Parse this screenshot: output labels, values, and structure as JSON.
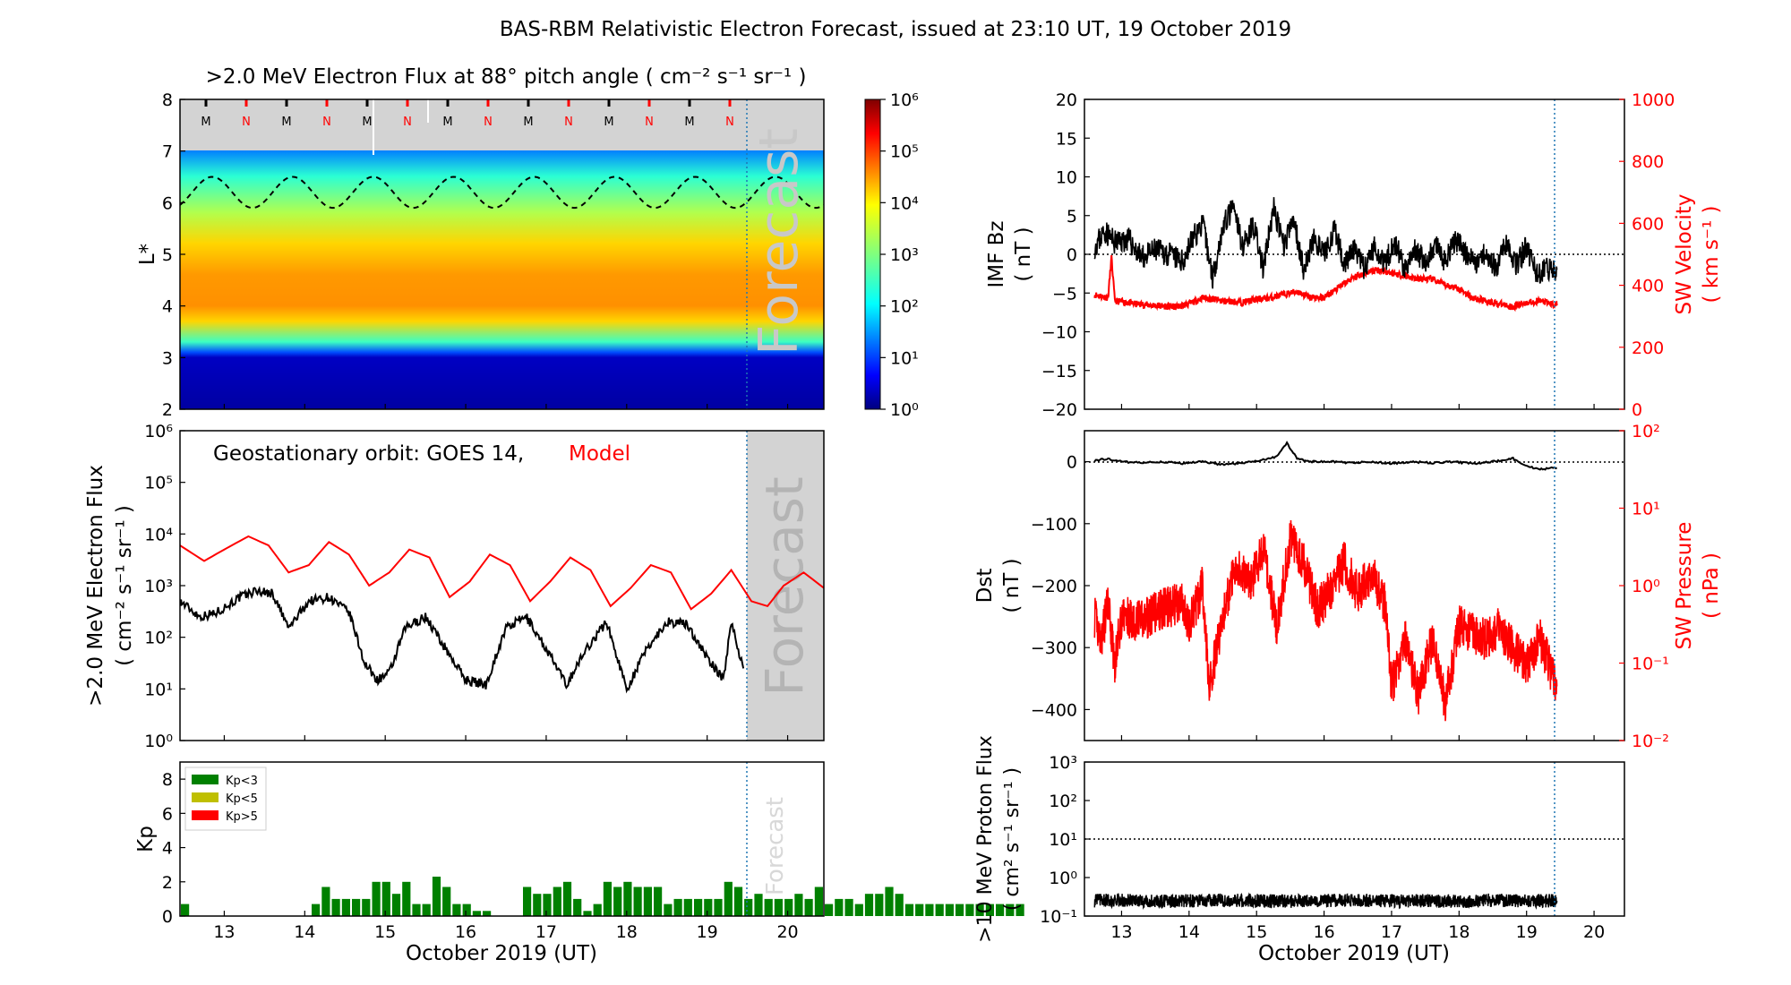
{
  "title": "BAS-RBM Relativistic Electron Forecast, issued at 23:10 UT, 19 October 2019",
  "colors": {
    "black": "#000000",
    "red": "#ff0000",
    "kp_low": "#008000",
    "kp_mid": "#bfbf00",
    "kp_high": "#ff0000",
    "forecast_gray": "#d3d3d3",
    "forecast_line": "#1f77b4"
  },
  "forecast_label": "Forecast",
  "xaxis": {
    "label": "October 2019 (UT)",
    "range": [
      12.45,
      20.45
    ],
    "ticks": [
      "13",
      "14",
      "15",
      "16",
      "17",
      "18",
      "19",
      "20"
    ],
    "forecast_start": 19.47
  },
  "chart_data": [
    {
      "id": "lstar_heatmap",
      "type": "heatmap",
      "title": ">2.0 MeV Electron Flux at 88° pitch angle ( cm⁻² s⁻¹ sr⁻¹ )",
      "ylabel": "L*",
      "ylim": [
        2,
        8
      ],
      "yticks": [
        "2",
        "3",
        "4",
        "5",
        "6",
        "7",
        "8"
      ],
      "colorbar_ticks": [
        "10⁰",
        "10¹",
        "10²",
        "10³",
        "10⁴",
        "10⁵",
        "10⁶"
      ],
      "colorbar_range_log10": [
        0,
        6
      ],
      "profile_log10_flux": [
        {
          "L": 2.0,
          "v": 0.2
        },
        {
          "L": 3.0,
          "v": 0.4
        },
        {
          "L": 3.1,
          "v": 1.2
        },
        {
          "L": 3.3,
          "v": 2.6
        },
        {
          "L": 3.7,
          "v": 4.0
        },
        {
          "L": 4.0,
          "v": 4.4
        },
        {
          "L": 4.6,
          "v": 4.35
        },
        {
          "L": 5.2,
          "v": 4.0
        },
        {
          "L": 5.8,
          "v": 3.3
        },
        {
          "L": 6.5,
          "v": 2.5
        },
        {
          "L": 7.0,
          "v": 1.5
        }
      ],
      "magnetopause_line": {
        "L_min": 5.9,
        "L_max": 6.5,
        "period_days": 1.0
      },
      "orbit_markers": [
        "M",
        "N",
        "M",
        "N",
        "M",
        "N",
        "M",
        "N",
        "M",
        "N",
        "M",
        "N",
        "M",
        "N"
      ]
    },
    {
      "id": "geo_flux",
      "type": "line",
      "annotation": "Geostationary orbit:   GOES 14,",
      "annotation_model": "Model",
      "ylabel": ">2.0 MeV Electron Flux",
      "ylabel_units": "( cm⁻² s⁻¹ sr⁻¹ )",
      "yscale": "log",
      "ylim": [
        1,
        1000000
      ],
      "yticks": [
        "10⁰",
        "10¹",
        "10²",
        "10³",
        "10⁴",
        "10⁵",
        "10⁶"
      ],
      "series": [
        {
          "name": "GOES 14",
          "color": "#000000",
          "x": [
            12.45,
            12.7,
            12.9,
            13.2,
            13.4,
            13.6,
            13.8,
            14.05,
            14.3,
            14.55,
            14.75,
            14.9,
            15.05,
            15.25,
            15.5,
            15.75,
            16.0,
            16.25,
            16.5,
            16.75,
            17.0,
            17.25,
            17.5,
            17.75,
            18.0,
            18.25,
            18.5,
            18.75,
            19.0,
            19.2,
            19.3,
            19.45
          ],
          "y": [
            500,
            250,
            300,
            600,
            800,
            700,
            150,
            500,
            600,
            300,
            30,
            15,
            20,
            150,
            250,
            60,
            15,
            12,
            150,
            250,
            60,
            12,
            60,
            200,
            10,
            60,
            200,
            180,
            40,
            15,
            200,
            25
          ]
        },
        {
          "name": "Model",
          "color": "#ff0000",
          "x": [
            12.45,
            12.75,
            13.0,
            13.3,
            13.55,
            13.8,
            14.05,
            14.3,
            14.55,
            14.8,
            15.05,
            15.3,
            15.55,
            15.8,
            16.05,
            16.3,
            16.55,
            16.8,
            17.05,
            17.3,
            17.55,
            17.8,
            18.05,
            18.3,
            18.55,
            18.8,
            19.05,
            19.3,
            19.55,
            19.75,
            19.95,
            20.2,
            20.45
          ],
          "y": [
            6000,
            3000,
            5000,
            9000,
            6000,
            1800,
            2500,
            7000,
            4000,
            1000,
            1800,
            5000,
            3500,
            600,
            1200,
            4000,
            2500,
            500,
            1200,
            3500,
            2000,
            400,
            900,
            2500,
            1800,
            350,
            700,
            2000,
            500,
            400,
            1000,
            1800,
            900
          ]
        }
      ]
    },
    {
      "id": "kp",
      "type": "bar",
      "ylabel": "Kp",
      "ylim": [
        0,
        9
      ],
      "yticks": [
        "0",
        "2",
        "4",
        "6",
        "8"
      ],
      "legend": [
        "Kp<3",
        "Kp<5",
        "Kp>5"
      ],
      "legend_position": "top-left",
      "bar_width_days": 0.125,
      "start": 12.45,
      "values": [
        0.7,
        0,
        0,
        0,
        0,
        0,
        0,
        0,
        0,
        0,
        0,
        0,
        0,
        0.7,
        1.7,
        1.0,
        1.0,
        1.0,
        1.0,
        2.0,
        2.0,
        1.3,
        2.0,
        0.7,
        0.7,
        2.3,
        1.7,
        0.7,
        0.7,
        0.3,
        0.3,
        0,
        0,
        0,
        1.7,
        1.3,
        1.3,
        1.7,
        2.0,
        1.0,
        0.3,
        0.7,
        2.0,
        1.7,
        2.0,
        1.7,
        1.7,
        1.7,
        0.7,
        1.0,
        1.0,
        1.0,
        1.0,
        1.0,
        2.0,
        1.7,
        1.0,
        1.3,
        1.0,
        1.0,
        1.0,
        1.3,
        1.0,
        1.7,
        0.7,
        1.0,
        1.0,
        0.7,
        1.3,
        1.3,
        1.7,
        1.3,
        0.7,
        0.7,
        0.7,
        0.7,
        0.7,
        0.7,
        0.7,
        0.7,
        0.7,
        0.7,
        0.7,
        0.7
      ]
    },
    {
      "id": "imf_sw",
      "type": "line",
      "ylabel": "IMF Bz",
      "ylabel_units": "( nT )",
      "ylim": [
        -20,
        20
      ],
      "yticks": [
        "−20",
        "−15",
        "−10",
        "−5",
        "0",
        "5",
        "10",
        "15",
        "20"
      ],
      "ylabel_right": "SW Velocity",
      "ylabel_right_units": "( km s⁻¹ )",
      "ylim_right": [
        0,
        1000
      ],
      "yticks_right": [
        "0",
        "200",
        "400",
        "600",
        "800",
        "1000"
      ],
      "series": [
        {
          "name": "IMF Bz",
          "color": "#000000",
          "x": [
            12.6,
            12.75,
            12.9,
            13.1,
            13.3,
            13.5,
            13.7,
            13.9,
            14.05,
            14.2,
            14.35,
            14.5,
            14.65,
            14.8,
            14.95,
            15.1,
            15.25,
            15.4,
            15.55,
            15.7,
            15.85,
            16.0,
            16.15,
            16.3,
            16.45,
            16.6,
            16.75,
            16.9,
            17.05,
            17.2,
            17.35,
            17.5,
            17.65,
            17.8,
            17.95,
            18.1,
            18.25,
            18.4,
            18.55,
            18.7,
            18.85,
            19.0,
            19.15,
            19.3,
            19.45
          ],
          "y": [
            1.0,
            3.0,
            1.5,
            2.0,
            -0.5,
            0.5,
            0.0,
            -1.0,
            2.0,
            4.0,
            -3.0,
            3.5,
            6.0,
            1.0,
            4.0,
            -2.0,
            6.0,
            1.0,
            4.5,
            -2.0,
            2.0,
            0.0,
            3.0,
            -1.0,
            0.5,
            -2.0,
            1.0,
            -1.0,
            1.5,
            -2.0,
            0.5,
            -1.0,
            1.0,
            -1.0,
            2.0,
            0.0,
            -1.0,
            0.5,
            -2.0,
            2.0,
            -1.5,
            1.0,
            -2.5,
            -2.0,
            -2.0
          ]
        },
        {
          "name": "SW Velocity",
          "color": "#ff0000",
          "x": [
            12.6,
            12.8,
            12.85,
            12.9,
            13.2,
            13.5,
            13.8,
            14.0,
            14.2,
            14.5,
            14.8,
            15.0,
            15.2,
            15.4,
            15.6,
            15.8,
            16.0,
            16.2,
            16.4,
            16.6,
            16.8,
            17.0,
            17.2,
            17.4,
            17.6,
            17.8,
            18.0,
            18.2,
            18.4,
            18.6,
            18.8,
            19.0,
            19.2,
            19.45
          ],
          "y": [
            370,
            360,
            490,
            350,
            340,
            335,
            330,
            340,
            360,
            350,
            345,
            355,
            360,
            370,
            380,
            360,
            360,
            390,
            420,
            440,
            450,
            440,
            430,
            420,
            420,
            400,
            390,
            360,
            350,
            340,
            330,
            345,
            350,
            335
          ]
        }
      ]
    },
    {
      "id": "dst_pressure",
      "type": "line",
      "ylabel": "Dst",
      "ylabel_units": "( nT )",
      "ylim": [
        -450,
        50
      ],
      "yticks": [
        "−400",
        "−300",
        "−200",
        "−100",
        "0"
      ],
      "ylabel_right": "SW Pressure",
      "ylabel_right_units": "( nPa )",
      "yscale_right": "log",
      "ylim_right": [
        0.01,
        100
      ],
      "yticks_right": [
        "10⁻²",
        "10⁻¹",
        "10⁰",
        "10¹",
        "10²"
      ],
      "series": [
        {
          "name": "Dst",
          "color": "#000000",
          "x": [
            12.6,
            12.8,
            13.0,
            13.3,
            13.6,
            13.9,
            14.2,
            14.5,
            14.8,
            15.1,
            15.3,
            15.45,
            15.6,
            15.8,
            16.1,
            16.4,
            16.7,
            17.0,
            17.3,
            17.6,
            17.9,
            18.2,
            18.5,
            18.8,
            19.0,
            19.2,
            19.45
          ],
          "y": [
            2,
            5,
            0,
            -2,
            0,
            -3,
            0,
            -5,
            -2,
            3,
            8,
            30,
            5,
            0,
            0,
            -2,
            0,
            -3,
            0,
            -2,
            0,
            -3,
            0,
            5,
            -8,
            -12,
            -10
          ]
        },
        {
          "name": "SW Pressure",
          "color": "#ff0000",
          "x": [
            12.6,
            12.7,
            12.8,
            12.9,
            13.0,
            13.3,
            13.6,
            13.9,
            14.0,
            14.2,
            14.3,
            14.5,
            14.7,
            14.9,
            15.1,
            15.3,
            15.5,
            15.7,
            15.9,
            16.1,
            16.3,
            16.5,
            16.7,
            16.9,
            17.0,
            17.2,
            17.4,
            17.6,
            17.8,
            18.0,
            18.2,
            18.4,
            18.6,
            18.8,
            19.0,
            19.2,
            19.45
          ],
          "y": [
            0.4,
            0.2,
            0.6,
            0.1,
            0.4,
            0.35,
            0.5,
            0.6,
            0.3,
            1.0,
            0.05,
            0.4,
            2.0,
            1.0,
            3.0,
            0.3,
            4.0,
            2.0,
            0.5,
            0.9,
            2.0,
            0.8,
            1.5,
            0.6,
            0.05,
            0.2,
            0.04,
            0.2,
            0.03,
            0.3,
            0.25,
            0.2,
            0.3,
            0.15,
            0.1,
            0.2,
            0.05
          ]
        }
      ]
    },
    {
      "id": "proton_flux",
      "type": "line",
      "ylabel": ">10 MeV Proton Flux",
      "ylabel_units": "( cm² s⁻¹ sr⁻¹ )",
      "yscale": "log",
      "ylim": [
        0.1,
        1000
      ],
      "yticks": [
        "10⁻¹",
        "10⁰",
        "10¹",
        "10²",
        "10³"
      ],
      "threshold": 10,
      "series": [
        {
          "name": ">10 MeV Proton Flux",
          "color": "#000000",
          "x": [
            12.6,
            13.0,
            13.5,
            14.0,
            14.5,
            15.0,
            15.5,
            16.0,
            16.5,
            17.0,
            17.5,
            18.0,
            18.5,
            19.0,
            19.45
          ],
          "y": [
            0.25,
            0.26,
            0.24,
            0.25,
            0.26,
            0.25,
            0.24,
            0.25,
            0.26,
            0.25,
            0.25,
            0.24,
            0.26,
            0.25,
            0.25
          ]
        }
      ]
    }
  ]
}
